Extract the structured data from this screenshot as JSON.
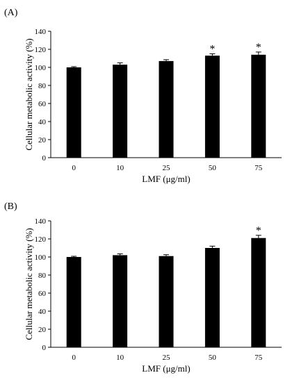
{
  "chart_data": [
    {
      "type": "bar",
      "panel_label": "(A)",
      "categories": [
        "0",
        "10",
        "25",
        "50",
        "75"
      ],
      "values": [
        100,
        103,
        107,
        113,
        114
      ],
      "errors": [
        0.8,
        2,
        1.5,
        2,
        3
      ],
      "significance": [
        "",
        "",
        "",
        "*",
        "*"
      ],
      "xlabel": "LMF (μg/ml)",
      "ylabel": "Cellular metabolic activity (%)",
      "ylim": [
        0,
        140
      ],
      "yticks": [
        0,
        20,
        40,
        60,
        80,
        100,
        120,
        140
      ],
      "bar_color": "#000000",
      "grid": false
    },
    {
      "type": "bar",
      "panel_label": "(B)",
      "categories": [
        "0",
        "10",
        "25",
        "50",
        "75"
      ],
      "values": [
        100,
        102,
        101,
        110,
        121
      ],
      "errors": [
        0.8,
        1.5,
        1.5,
        2,
        3
      ],
      "significance": [
        "",
        "",
        "",
        "",
        "*"
      ],
      "xlabel": "LMF (μg/ml)",
      "ylabel": "Cellular metabolic activity (%)",
      "ylim": [
        0,
        140
      ],
      "yticks": [
        0,
        20,
        40,
        60,
        80,
        100,
        120,
        140
      ],
      "bar_color": "#000000",
      "grid": false
    }
  ]
}
